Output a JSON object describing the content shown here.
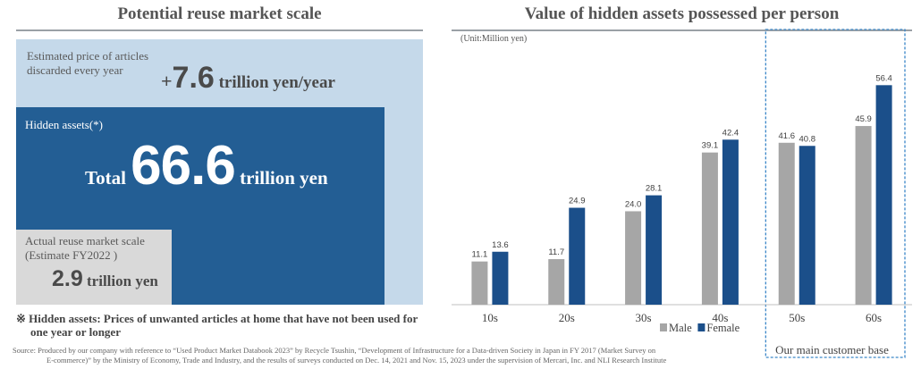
{
  "left_panel": {
    "title": "Potential reuse market scale",
    "discarded": {
      "label_line1": "Estimated price of articles",
      "label_line2": "discarded every year",
      "sign": "+",
      "value": "7.6",
      "unit": " trillion yen/year"
    },
    "hidden": {
      "label": "Hidden assets(*)",
      "prefix": "Total ",
      "value": "66.6",
      "unit": " trillion yen"
    },
    "reuse": {
      "label_line1": "Actual reuse market scale",
      "label_line2": "(Estimate FY2022 )",
      "value": "2.9",
      "unit": " trillion yen"
    },
    "footnote_line1": "※ Hidden assets: Prices of unwanted articles at home that have not been used for",
    "footnote_line2": "one year or longer"
  },
  "right_panel": {
    "title": "Value of hidden assets possessed per person",
    "unit_note": "(Unit:Million yen)",
    "highlight_label": "Our main customer base"
  },
  "source_line1": "Source: Produced by our company with reference to “Used Product Market Databook 2023” by Recycle Tsushin, “Development of Infrastructure for a Data-driven Society in Japan in FY 2017 (Market Survey on",
  "source_line2": "E-commerce)” by the Ministry of Economy, Trade and Industry, and the results of surveys conducted on Dec. 14, 2021 and Nov. 15, 2023 under the supervision of Mercari, Inc. and NLI Research Institute",
  "colors": {
    "male": "#a6a6a6",
    "female": "#1b4f8a",
    "highlight": "#3a86c8"
  },
  "chart_data": {
    "type": "bar",
    "categories": [
      "10s",
      "20s",
      "30s",
      "40s",
      "50s",
      "60s"
    ],
    "series": [
      {
        "name": "Male",
        "values": [
          11.1,
          11.7,
          24.0,
          39.1,
          41.6,
          45.9
        ]
      },
      {
        "name": "Female",
        "values": [
          13.6,
          24.9,
          28.1,
          42.4,
          40.8,
          56.4
        ]
      }
    ],
    "value_labels": {
      "Male": [
        "11.1",
        "11.7",
        "24.0",
        "39.1",
        "41.6",
        "45.9"
      ],
      "Female": [
        "13.6",
        "24.9",
        "28.1",
        "42.4",
        "40.8",
        "56.4"
      ]
    },
    "title": "Value of hidden assets possessed per person",
    "xlabel": "",
    "ylabel": "",
    "ylim": [
      0,
      60
    ],
    "grid": false,
    "legend": "bottom-right",
    "highlight_categories": [
      "50s",
      "60s"
    ]
  }
}
